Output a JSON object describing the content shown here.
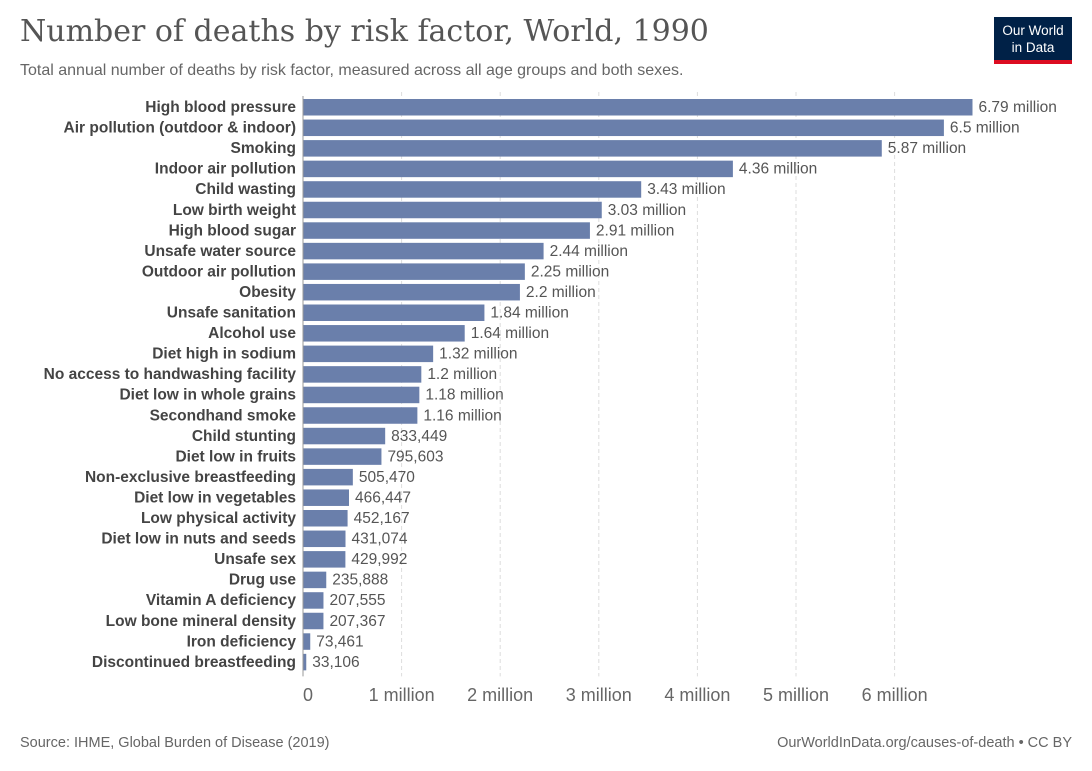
{
  "header": {
    "title": "Number of deaths by risk factor, World, 1990",
    "subtitle": "Total annual number of deaths by risk factor, measured across all age groups and both sexes."
  },
  "logo": {
    "line1": "Our World",
    "line2": "in Data",
    "bg_color": "#002147",
    "accent_color": "#dc0c21"
  },
  "footer": {
    "source": "Source: IHME, Global Burden of Disease (2019)",
    "credit": "OurWorldInData.org/causes-of-death • CC BY"
  },
  "chart_data": {
    "type": "bar",
    "orientation": "horizontal",
    "title": "Number of deaths by risk factor, World, 1990",
    "xlabel": "",
    "ylabel": "",
    "xlim": [
      0,
      6790000
    ],
    "x_ticks": [
      0,
      1000000,
      2000000,
      3000000,
      4000000,
      5000000,
      6000000
    ],
    "x_tick_labels": [
      "0",
      "1 million",
      "2 million",
      "3 million",
      "4 million",
      "5 million",
      "6 million"
    ],
    "grid": "vertical dashed",
    "bar_color": "#6a7fab",
    "categories": [
      "High blood pressure",
      "Air pollution (outdoor & indoor)",
      "Smoking",
      "Indoor air pollution",
      "Child wasting",
      "Low birth weight",
      "High blood sugar",
      "Unsafe water source",
      "Outdoor air pollution",
      "Obesity",
      "Unsafe sanitation",
      "Alcohol use",
      "Diet high in sodium",
      "No access to handwashing facility",
      "Diet low in whole grains",
      "Secondhand smoke",
      "Child stunting",
      "Diet low in fruits",
      "Non-exclusive breastfeeding",
      "Diet low in vegetables",
      "Low physical activity",
      "Diet low in nuts and seeds",
      "Unsafe sex",
      "Drug use",
      "Vitamin A deficiency",
      "Low bone mineral density",
      "Iron deficiency",
      "Discontinued breastfeeding"
    ],
    "values": [
      6790000,
      6500000,
      5870000,
      4360000,
      3430000,
      3030000,
      2910000,
      2440000,
      2250000,
      2200000,
      1840000,
      1640000,
      1320000,
      1200000,
      1180000,
      1160000,
      833449,
      795603,
      505470,
      466447,
      452167,
      431074,
      429992,
      235888,
      207555,
      207367,
      73461,
      33106
    ],
    "value_labels": [
      "6.79 million",
      "6.5 million",
      "5.87 million",
      "4.36 million",
      "3.43 million",
      "3.03 million",
      "2.91 million",
      "2.44 million",
      "2.25 million",
      "2.2 million",
      "1.84 million",
      "1.64 million",
      "1.32 million",
      "1.2 million",
      "1.18 million",
      "1.16 million",
      "833,449",
      "795,603",
      "505,470",
      "466,447",
      "452,167",
      "431,074",
      "429,992",
      "235,888",
      "207,555",
      "207,367",
      "73,461",
      "33,106"
    ]
  }
}
